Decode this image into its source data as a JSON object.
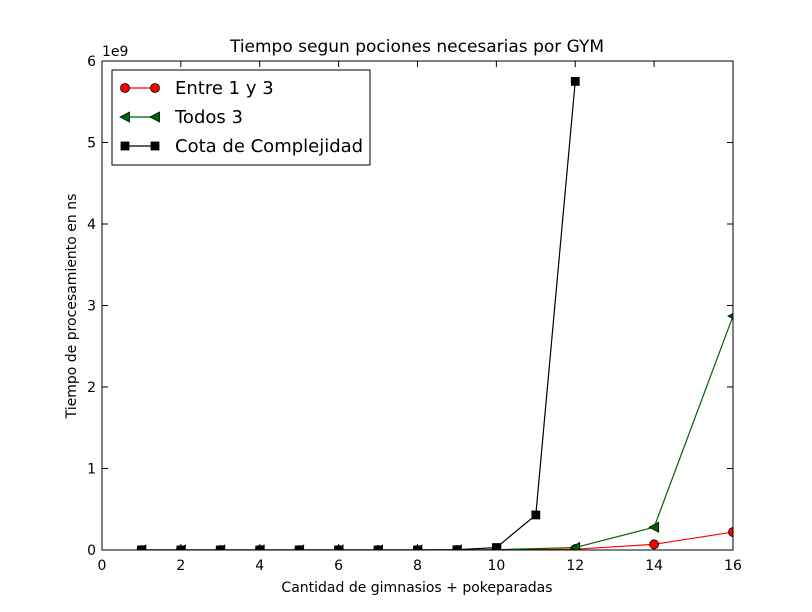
{
  "chart_data": {
    "type": "line",
    "title": "Tiempo segun pociones necesarias por GYM",
    "xlabel": "Cantidad de gimnasios + pokeparadas",
    "ylabel": "Tiempo de procesamiento en ns",
    "y_offset_label": "1e9",
    "xlim": [
      0,
      16
    ],
    "ylim": [
      0,
      6
    ],
    "xticks": [
      0,
      2,
      4,
      6,
      8,
      10,
      12,
      14,
      16
    ],
    "yticks": [
      0,
      1,
      2,
      3,
      4,
      5,
      6
    ],
    "grid": false,
    "legend_position": "top-left",
    "series": [
      {
        "name": "Entre 1 y 3",
        "color": "#ff0000",
        "marker": "circle",
        "x": [
          1,
          2,
          3,
          4,
          5,
          6,
          7,
          8,
          9,
          10,
          12,
          14,
          16
        ],
        "y": [
          0,
          0,
          0,
          0,
          0,
          0,
          0,
          0,
          0,
          0.001,
          0.01,
          0.07,
          0.22
        ]
      },
      {
        "name": "Todos 3",
        "color": "#006400",
        "marker": "triangle-left",
        "x": [
          1,
          2,
          3,
          4,
          5,
          6,
          7,
          8,
          9,
          10,
          12,
          14,
          16
        ],
        "y": [
          0,
          0,
          0,
          0,
          0,
          0,
          0,
          0,
          0,
          0.004,
          0.03,
          0.28,
          2.87
        ]
      },
      {
        "name": "Cota de Complejidad",
        "color": "#000000",
        "marker": "square",
        "x": [
          1,
          2,
          3,
          4,
          5,
          6,
          7,
          8,
          9,
          10,
          11,
          12
        ],
        "y": [
          0,
          0,
          0,
          0,
          0,
          0,
          0,
          0,
          0.003,
          0.03,
          0.43,
          5.75
        ]
      }
    ]
  }
}
